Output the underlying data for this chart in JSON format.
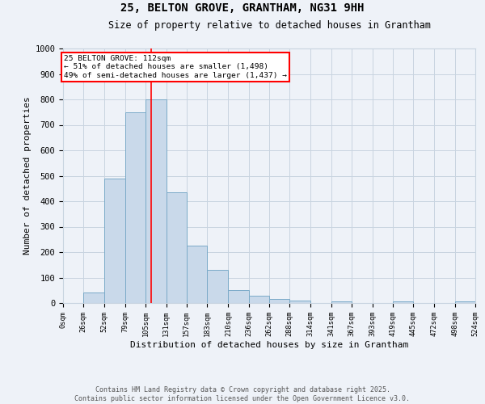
{
  "title_line1": "25, BELTON GROVE, GRANTHAM, NG31 9HH",
  "title_line2": "Size of property relative to detached houses in Grantham",
  "xlabel": "Distribution of detached houses by size in Grantham",
  "ylabel": "Number of detached properties",
  "bin_edges": [
    0,
    26,
    52,
    79,
    105,
    131,
    157,
    183,
    210,
    236,
    262,
    288,
    314,
    341,
    367,
    393,
    419,
    445,
    472,
    498,
    524
  ],
  "bar_heights": [
    0,
    42,
    490,
    750,
    800,
    435,
    225,
    130,
    50,
    27,
    15,
    8,
    0,
    7,
    0,
    0,
    6,
    0,
    0,
    5
  ],
  "bar_facecolor": "#c9d9ea",
  "bar_edgecolor": "#7aaac8",
  "grid_color": "#c8d4e0",
  "background_color": "#eef2f8",
  "vline_x": 112,
  "vline_color": "red",
  "annotation_text": "25 BELTON GROVE: 112sqm\n← 51% of detached houses are smaller (1,498)\n49% of semi-detached houses are larger (1,437) →",
  "annotation_box_color": "red",
  "annotation_text_color": "black",
  "annotation_bg": "white",
  "ylim": [
    0,
    1000
  ],
  "yticks": [
    0,
    100,
    200,
    300,
    400,
    500,
    600,
    700,
    800,
    900,
    1000
  ],
  "footnote_line1": "Contains HM Land Registry data © Crown copyright and database right 2025.",
  "footnote_line2": "Contains public sector information licensed under the Open Government Licence v3.0.",
  "tick_labels": [
    "0sqm",
    "26sqm",
    "52sqm",
    "79sqm",
    "105sqm",
    "131sqm",
    "157sqm",
    "183sqm",
    "210sqm",
    "236sqm",
    "262sqm",
    "288sqm",
    "314sqm",
    "341sqm",
    "367sqm",
    "393sqm",
    "419sqm",
    "445sqm",
    "472sqm",
    "498sqm",
    "524sqm"
  ]
}
